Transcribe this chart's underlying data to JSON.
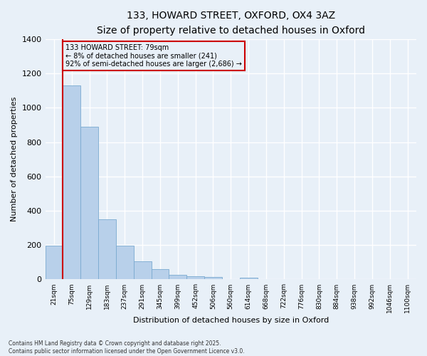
{
  "title_line1": "133, HOWARD STREET, OXFORD, OX4 3AZ",
  "title_line2": "Size of property relative to detached houses in Oxford",
  "xlabel": "Distribution of detached houses by size in Oxford",
  "ylabel": "Number of detached properties",
  "categories": [
    "21sqm",
    "75sqm",
    "129sqm",
    "183sqm",
    "237sqm",
    "291sqm",
    "345sqm",
    "399sqm",
    "452sqm",
    "506sqm",
    "560sqm",
    "614sqm",
    "668sqm",
    "722sqm",
    "776sqm",
    "830sqm",
    "884sqm",
    "938sqm",
    "992sqm",
    "1046sqm",
    "1100sqm"
  ],
  "values": [
    195,
    1130,
    890,
    350,
    195,
    105,
    60,
    25,
    20,
    13,
    0,
    10,
    0,
    0,
    0,
    0,
    0,
    0,
    0,
    0,
    0
  ],
  "bar_color": "#b8d0ea",
  "bar_edge_color": "#7aaad0",
  "vline_x": 0.5,
  "vline_color": "#cc0000",
  "annotation_text": "133 HOWARD STREET: 79sqm\n← 8% of detached houses are smaller (241)\n92% of semi-detached houses are larger (2,686) →",
  "annotation_box_color": "#cc0000",
  "ylim": [
    0,
    1400
  ],
  "yticks": [
    0,
    200,
    400,
    600,
    800,
    1000,
    1200,
    1400
  ],
  "background_color": "#e8f0f8",
  "grid_color": "#ffffff",
  "footer_line1": "Contains HM Land Registry data © Crown copyright and database right 2025.",
  "footer_line2": "Contains public sector information licensed under the Open Government Licence v3.0.",
  "figsize": [
    6.0,
    5.0
  ],
  "dpi": 100
}
